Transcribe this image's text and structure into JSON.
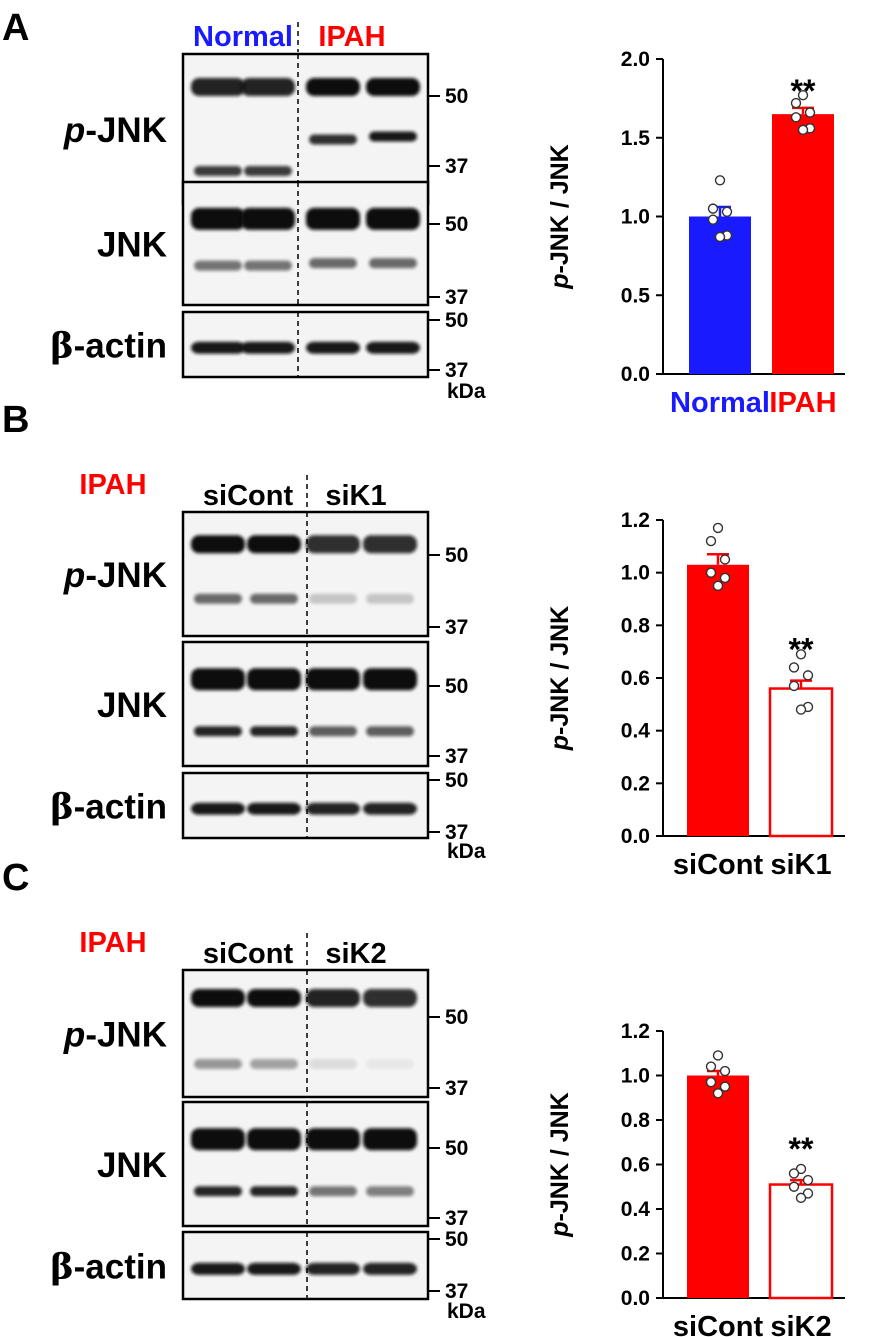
{
  "colors": {
    "normal": "#1a1aff",
    "ipah": "#ff0000",
    "black": "#000000",
    "band": "#1a1a1a"
  },
  "panels": [
    {
      "letter": "A",
      "heading": "",
      "lanes": [
        {
          "label": "Normal",
          "color": "#1a1aff"
        },
        {
          "label": "IPAH",
          "color": "#ff0000"
        }
      ],
      "blots": [
        {
          "label_prefix": "p",
          "label_main": "-JNK",
          "ticks": [
            "50",
            "37"
          ]
        },
        {
          "label_prefix": "",
          "label_main": "JNK",
          "ticks": [
            "50",
            "37"
          ]
        },
        {
          "label_prefix": "β",
          "label_main": "-actin",
          "ticks": [
            "50",
            "37"
          ]
        }
      ],
      "kda": "kDa"
    },
    {
      "letter": "B",
      "heading": "IPAH",
      "lanes": [
        {
          "label": "siCont",
          "color": "#000000"
        },
        {
          "label": "siK1",
          "color": "#000000"
        }
      ],
      "blots": [
        {
          "label_prefix": "p",
          "label_main": "-JNK",
          "ticks": [
            "50",
            "37"
          ]
        },
        {
          "label_prefix": "",
          "label_main": "JNK",
          "ticks": [
            "50",
            "37"
          ]
        },
        {
          "label_prefix": "β",
          "label_main": "-actin",
          "ticks": [
            "50",
            "37"
          ]
        }
      ],
      "kda": "kDa"
    },
    {
      "letter": "C",
      "heading": "IPAH",
      "lanes": [
        {
          "label": "siCont",
          "color": "#000000"
        },
        {
          "label": "siK2",
          "color": "#000000"
        }
      ],
      "blots": [
        {
          "label_prefix": "p",
          "label_main": "-JNK",
          "ticks": [
            "50",
            "37"
          ]
        },
        {
          "label_prefix": "",
          "label_main": "JNK",
          "ticks": [
            "50",
            "37"
          ]
        },
        {
          "label_prefix": "β",
          "label_main": "-actin",
          "ticks": [
            "50",
            "37"
          ]
        }
      ],
      "kda": "kDa"
    }
  ],
  "chart_data": [
    {
      "type": "bar",
      "ylabel_prefix": "p",
      "ylabel_main": "-JNK / JNK",
      "ylim": [
        0,
        2.0
      ],
      "yticks": [
        "0.0",
        "0.5",
        "1.0",
        "1.5",
        "2.0"
      ],
      "categories": [
        "Normal",
        "IPAH"
      ],
      "category_colors": [
        "#1a1aff",
        "#ff0000"
      ],
      "values": [
        1.0,
        1.65
      ],
      "errors": [
        0.06,
        0.04
      ],
      "fills": [
        "solid",
        "solid"
      ],
      "points": [
        [
          1.23,
          1.05,
          1.03,
          0.98,
          0.88,
          0.87
        ],
        [
          1.77,
          1.72,
          1.66,
          1.63,
          1.56,
          1.55
        ]
      ],
      "significance": [
        "",
        "**"
      ]
    },
    {
      "type": "bar",
      "ylabel_prefix": "p",
      "ylabel_main": "-JNK / JNK",
      "ylim": [
        0,
        1.2
      ],
      "yticks": [
        "0.0",
        "0.2",
        "0.4",
        "0.6",
        "0.8",
        "1.0",
        "1.2"
      ],
      "categories": [
        "siCont",
        "siK1"
      ],
      "category_colors": [
        "#000000",
        "#000000"
      ],
      "values": [
        1.03,
        0.56
      ],
      "errors": [
        0.04,
        0.03
      ],
      "fills": [
        "solid",
        "hollow"
      ],
      "points": [
        [
          1.17,
          1.12,
          1.05,
          1.0,
          0.98,
          0.95
        ],
        [
          0.69,
          0.64,
          0.61,
          0.57,
          0.49,
          0.48
        ]
      ],
      "significance": [
        "",
        "**"
      ]
    },
    {
      "type": "bar",
      "ylabel_prefix": "p",
      "ylabel_main": "-JNK / JNK",
      "ylim": [
        0,
        1.2
      ],
      "yticks": [
        "0.0",
        "0.2",
        "0.4",
        "0.6",
        "0.8",
        "1.0",
        "1.2"
      ],
      "categories": [
        "siCont",
        "siK2"
      ],
      "category_colors": [
        "#000000",
        "#000000"
      ],
      "values": [
        1.0,
        0.51
      ],
      "errors": [
        0.02,
        0.02
      ],
      "fills": [
        "solid",
        "hollow"
      ],
      "points": [
        [
          1.09,
          1.04,
          1.02,
          0.97,
          0.95,
          0.92
        ],
        [
          0.58,
          0.56,
          0.53,
          0.5,
          0.47,
          0.45
        ]
      ],
      "significance": [
        "",
        "**"
      ]
    }
  ]
}
